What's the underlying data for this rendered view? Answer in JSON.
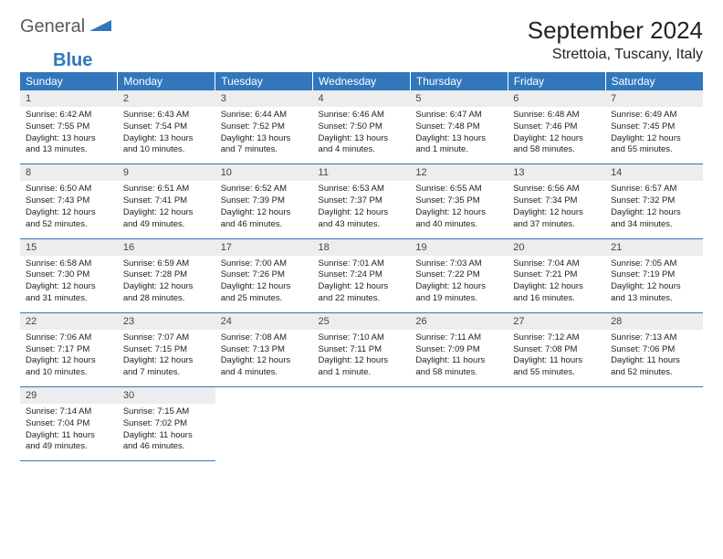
{
  "logo": {
    "text1": "General",
    "text2": "Blue"
  },
  "title": "September 2024",
  "location": "Strettoia, Tuscany, Italy",
  "colors": {
    "header_bg": "#3277bc",
    "header_text": "#ffffff",
    "daynum_bg": "#ecedee",
    "border": "#3277bc",
    "logo_gray": "#5a5a5a",
    "logo_blue": "#3277bc"
  },
  "weekdays": [
    "Sunday",
    "Monday",
    "Tuesday",
    "Wednesday",
    "Thursday",
    "Friday",
    "Saturday"
  ],
  "weeks": [
    [
      {
        "n": "1",
        "sr": "Sunrise: 6:42 AM",
        "ss": "Sunset: 7:55 PM",
        "d1": "Daylight: 13 hours",
        "d2": "and 13 minutes."
      },
      {
        "n": "2",
        "sr": "Sunrise: 6:43 AM",
        "ss": "Sunset: 7:54 PM",
        "d1": "Daylight: 13 hours",
        "d2": "and 10 minutes."
      },
      {
        "n": "3",
        "sr": "Sunrise: 6:44 AM",
        "ss": "Sunset: 7:52 PM",
        "d1": "Daylight: 13 hours",
        "d2": "and 7 minutes."
      },
      {
        "n": "4",
        "sr": "Sunrise: 6:46 AM",
        "ss": "Sunset: 7:50 PM",
        "d1": "Daylight: 13 hours",
        "d2": "and 4 minutes."
      },
      {
        "n": "5",
        "sr": "Sunrise: 6:47 AM",
        "ss": "Sunset: 7:48 PM",
        "d1": "Daylight: 13 hours",
        "d2": "and 1 minute."
      },
      {
        "n": "6",
        "sr": "Sunrise: 6:48 AM",
        "ss": "Sunset: 7:46 PM",
        "d1": "Daylight: 12 hours",
        "d2": "and 58 minutes."
      },
      {
        "n": "7",
        "sr": "Sunrise: 6:49 AM",
        "ss": "Sunset: 7:45 PM",
        "d1": "Daylight: 12 hours",
        "d2": "and 55 minutes."
      }
    ],
    [
      {
        "n": "8",
        "sr": "Sunrise: 6:50 AM",
        "ss": "Sunset: 7:43 PM",
        "d1": "Daylight: 12 hours",
        "d2": "and 52 minutes."
      },
      {
        "n": "9",
        "sr": "Sunrise: 6:51 AM",
        "ss": "Sunset: 7:41 PM",
        "d1": "Daylight: 12 hours",
        "d2": "and 49 minutes."
      },
      {
        "n": "10",
        "sr": "Sunrise: 6:52 AM",
        "ss": "Sunset: 7:39 PM",
        "d1": "Daylight: 12 hours",
        "d2": "and 46 minutes."
      },
      {
        "n": "11",
        "sr": "Sunrise: 6:53 AM",
        "ss": "Sunset: 7:37 PM",
        "d1": "Daylight: 12 hours",
        "d2": "and 43 minutes."
      },
      {
        "n": "12",
        "sr": "Sunrise: 6:55 AM",
        "ss": "Sunset: 7:35 PM",
        "d1": "Daylight: 12 hours",
        "d2": "and 40 minutes."
      },
      {
        "n": "13",
        "sr": "Sunrise: 6:56 AM",
        "ss": "Sunset: 7:34 PM",
        "d1": "Daylight: 12 hours",
        "d2": "and 37 minutes."
      },
      {
        "n": "14",
        "sr": "Sunrise: 6:57 AM",
        "ss": "Sunset: 7:32 PM",
        "d1": "Daylight: 12 hours",
        "d2": "and 34 minutes."
      }
    ],
    [
      {
        "n": "15",
        "sr": "Sunrise: 6:58 AM",
        "ss": "Sunset: 7:30 PM",
        "d1": "Daylight: 12 hours",
        "d2": "and 31 minutes."
      },
      {
        "n": "16",
        "sr": "Sunrise: 6:59 AM",
        "ss": "Sunset: 7:28 PM",
        "d1": "Daylight: 12 hours",
        "d2": "and 28 minutes."
      },
      {
        "n": "17",
        "sr": "Sunrise: 7:00 AM",
        "ss": "Sunset: 7:26 PM",
        "d1": "Daylight: 12 hours",
        "d2": "and 25 minutes."
      },
      {
        "n": "18",
        "sr": "Sunrise: 7:01 AM",
        "ss": "Sunset: 7:24 PM",
        "d1": "Daylight: 12 hours",
        "d2": "and 22 minutes."
      },
      {
        "n": "19",
        "sr": "Sunrise: 7:03 AM",
        "ss": "Sunset: 7:22 PM",
        "d1": "Daylight: 12 hours",
        "d2": "and 19 minutes."
      },
      {
        "n": "20",
        "sr": "Sunrise: 7:04 AM",
        "ss": "Sunset: 7:21 PM",
        "d1": "Daylight: 12 hours",
        "d2": "and 16 minutes."
      },
      {
        "n": "21",
        "sr": "Sunrise: 7:05 AM",
        "ss": "Sunset: 7:19 PM",
        "d1": "Daylight: 12 hours",
        "d2": "and 13 minutes."
      }
    ],
    [
      {
        "n": "22",
        "sr": "Sunrise: 7:06 AM",
        "ss": "Sunset: 7:17 PM",
        "d1": "Daylight: 12 hours",
        "d2": "and 10 minutes."
      },
      {
        "n": "23",
        "sr": "Sunrise: 7:07 AM",
        "ss": "Sunset: 7:15 PM",
        "d1": "Daylight: 12 hours",
        "d2": "and 7 minutes."
      },
      {
        "n": "24",
        "sr": "Sunrise: 7:08 AM",
        "ss": "Sunset: 7:13 PM",
        "d1": "Daylight: 12 hours",
        "d2": "and 4 minutes."
      },
      {
        "n": "25",
        "sr": "Sunrise: 7:10 AM",
        "ss": "Sunset: 7:11 PM",
        "d1": "Daylight: 12 hours",
        "d2": "and 1 minute."
      },
      {
        "n": "26",
        "sr": "Sunrise: 7:11 AM",
        "ss": "Sunset: 7:09 PM",
        "d1": "Daylight: 11 hours",
        "d2": "and 58 minutes."
      },
      {
        "n": "27",
        "sr": "Sunrise: 7:12 AM",
        "ss": "Sunset: 7:08 PM",
        "d1": "Daylight: 11 hours",
        "d2": "and 55 minutes."
      },
      {
        "n": "28",
        "sr": "Sunrise: 7:13 AM",
        "ss": "Sunset: 7:06 PM",
        "d1": "Daylight: 11 hours",
        "d2": "and 52 minutes."
      }
    ],
    [
      {
        "n": "29",
        "sr": "Sunrise: 7:14 AM",
        "ss": "Sunset: 7:04 PM",
        "d1": "Daylight: 11 hours",
        "d2": "and 49 minutes."
      },
      {
        "n": "30",
        "sr": "Sunrise: 7:15 AM",
        "ss": "Sunset: 7:02 PM",
        "d1": "Daylight: 11 hours",
        "d2": "and 46 minutes."
      },
      null,
      null,
      null,
      null,
      null
    ]
  ]
}
